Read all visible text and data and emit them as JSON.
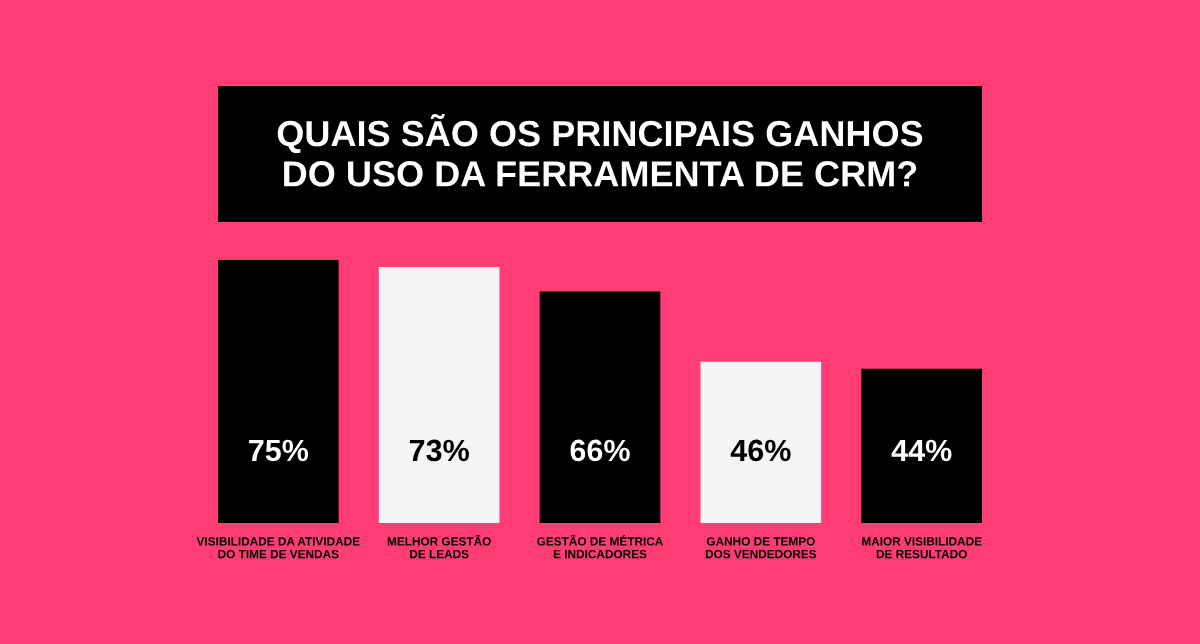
{
  "chart_data": {
    "type": "bar",
    "title": "QUAIS SÃO OS PRINCIPAIS GANHOS\nDO USO DA FERRAMENTA DE CRM?",
    "categories": [
      "VISIBILIDADE DA ATIVIDADE\nDO TIME DE VENDAS",
      "MELHOR GESTÃO\nDE LEADS",
      "GESTÃO DE MÉTRICA\nE INDICADORES",
      "GANHO DE TEMPO\nDOS VENDEDORES",
      "MAIOR VISIBILIDADE\nDE RESULTADO"
    ],
    "values": [
      75,
      73,
      66,
      46,
      44
    ],
    "value_labels": [
      "75%",
      "73%",
      "66%",
      "46%",
      "44%"
    ],
    "colors": [
      "#000000",
      "#f5f5f5",
      "#000000",
      "#f5f5f5",
      "#000000"
    ]
  }
}
